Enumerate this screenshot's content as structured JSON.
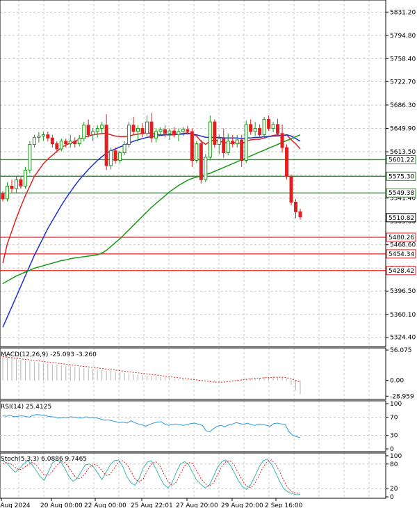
{
  "chart_data": [
    {
      "type": "candlestick",
      "panel": "price",
      "ylim": [
        5310,
        5850
      ],
      "y_ticks": [
        "5831.20",
        "5794.80",
        "5758.40",
        "5722.70",
        "5686.30",
        "5649.90",
        "5613.50",
        "5577.10",
        "5541.40",
        "5505.00",
        "5468.60",
        "5432.20",
        "5396.50",
        "5360.10",
        "5324.40"
      ],
      "y_tick_values": [
        5831.2,
        5794.8,
        5758.4,
        5722.7,
        5686.3,
        5649.9,
        5613.5,
        5577.1,
        5541.4,
        5505.0,
        5468.6,
        5432.2,
        5396.5,
        5360.1,
        5324.4
      ],
      "x_ticks": [
        "16 Aug 2024",
        "20 Aug 00:00",
        "22 Aug 00:00",
        "25 Aug 22:01",
        "27 Aug 20:00",
        "29 Aug 20:00",
        "2 Sep 16:00"
      ],
      "candles": [
        [
          5548,
          5552,
          5536,
          5540
        ],
        [
          5540,
          5566,
          5536,
          5560
        ],
        [
          5560,
          5570,
          5550,
          5556
        ],
        [
          5556,
          5576,
          5550,
          5570
        ],
        [
          5570,
          5574,
          5556,
          5560
        ],
        [
          5560,
          5590,
          5556,
          5585
        ],
        [
          5585,
          5630,
          5580,
          5625
        ],
        [
          5625,
          5640,
          5620,
          5636
        ],
        [
          5636,
          5644,
          5628,
          5638
        ],
        [
          5638,
          5645,
          5630,
          5640
        ],
        [
          5640,
          5645,
          5630,
          5635
        ],
        [
          5635,
          5640,
          5620,
          5626
        ],
        [
          5626,
          5630,
          5612,
          5618
        ],
        [
          5618,
          5634,
          5614,
          5630
        ],
        [
          5630,
          5634,
          5620,
          5626
        ],
        [
          5626,
          5640,
          5620,
          5630
        ],
        [
          5630,
          5636,
          5620,
          5626
        ],
        [
          5626,
          5640,
          5622,
          5634
        ],
        [
          5634,
          5660,
          5630,
          5655
        ],
        [
          5655,
          5664,
          5636,
          5640
        ],
        [
          5640,
          5650,
          5630,
          5645
        ],
        [
          5645,
          5655,
          5636,
          5650
        ],
        [
          5650,
          5660,
          5642,
          5655
        ],
        [
          5655,
          5672,
          5585,
          5592
        ],
        [
          5592,
          5620,
          5586,
          5615
        ],
        [
          5615,
          5620,
          5595,
          5600
        ],
        [
          5600,
          5615,
          5596,
          5612
        ],
        [
          5612,
          5630,
          5608,
          5625
        ],
        [
          5625,
          5660,
          5620,
          5655
        ],
        [
          5655,
          5668,
          5640,
          5645
        ],
        [
          5645,
          5655,
          5630,
          5650
        ],
        [
          5650,
          5658,
          5636,
          5642
        ],
        [
          5642,
          5670,
          5638,
          5660
        ],
        [
          5660,
          5674,
          5628,
          5635
        ],
        [
          5635,
          5650,
          5628,
          5645
        ],
        [
          5645,
          5652,
          5638,
          5648
        ],
        [
          5648,
          5655,
          5636,
          5642
        ],
        [
          5642,
          5650,
          5632,
          5646
        ],
        [
          5646,
          5652,
          5636,
          5640
        ],
        [
          5640,
          5650,
          5630,
          5645
        ],
        [
          5645,
          5652,
          5638,
          5648
        ],
        [
          5648,
          5654,
          5640,
          5645
        ],
        [
          5645,
          5650,
          5590,
          5600
        ],
        [
          5600,
          5630,
          5596,
          5626
        ],
        [
          5626,
          5632,
          5564,
          5570
        ],
        [
          5570,
          5610,
          5566,
          5605
        ],
        [
          5605,
          5670,
          5600,
          5660
        ],
        [
          5660,
          5664,
          5620,
          5625
        ],
        [
          5625,
          5640,
          5610,
          5634
        ],
        [
          5634,
          5650,
          5604,
          5612
        ],
        [
          5612,
          5642,
          5608,
          5630
        ],
        [
          5630,
          5640,
          5620,
          5626
        ],
        [
          5626,
          5640,
          5620,
          5632
        ],
        [
          5632,
          5640,
          5590,
          5600
        ],
        [
          5600,
          5662,
          5596,
          5656
        ],
        [
          5656,
          5664,
          5640,
          5645
        ],
        [
          5645,
          5660,
          5638,
          5650
        ],
        [
          5650,
          5656,
          5636,
          5640
        ],
        [
          5640,
          5668,
          5636,
          5664
        ],
        [
          5664,
          5670,
          5646,
          5650
        ],
        [
          5650,
          5660,
          5644,
          5656
        ],
        [
          5656,
          5665,
          5638,
          5642
        ],
        [
          5642,
          5656,
          5612,
          5620
        ],
        [
          5620,
          5625,
          5570,
          5575
        ],
        [
          5575,
          5578,
          5530,
          5535
        ],
        [
          5535,
          5540,
          5510,
          5520
        ],
        [
          5520,
          5525,
          5508,
          5512
        ]
      ],
      "series": [
        {
          "name": "",
          "color": "#e02020",
          "values": [
            5440,
            5470,
            5490,
            5510,
            5528,
            5545,
            5560,
            5575,
            5585,
            5595,
            5602,
            5608,
            5614,
            5620,
            5624,
            5627,
            5630,
            5633,
            5636,
            5638,
            5640,
            5641,
            5642,
            5642,
            5640,
            5638,
            5637,
            5637,
            5638,
            5640,
            5641,
            5642,
            5643,
            5642,
            5641,
            5640,
            5640,
            5640,
            5640,
            5641,
            5642,
            5643,
            5641,
            5638,
            5630,
            5625,
            5630,
            5632,
            5630,
            5628,
            5627,
            5627,
            5628,
            5626,
            5630,
            5632,
            5633,
            5633,
            5635,
            5637,
            5639,
            5640,
            5638,
            5640,
            5632,
            5626,
            5618
          ]
        },
        {
          "name": "",
          "color": "#1f2fd6",
          "values": [
            5340,
            5356,
            5372,
            5388,
            5404,
            5420,
            5436,
            5452,
            5466,
            5480,
            5494,
            5506,
            5518,
            5530,
            5541,
            5551,
            5561,
            5570,
            5578,
            5586,
            5593,
            5600,
            5606,
            5611,
            5615,
            5618,
            5621,
            5624,
            5627,
            5630,
            5632,
            5634,
            5636,
            5637,
            5638,
            5639,
            5640,
            5640,
            5641,
            5641,
            5641,
            5642,
            5641,
            5640,
            5638,
            5636,
            5636,
            5636,
            5636,
            5635,
            5635,
            5635,
            5635,
            5634,
            5635,
            5635,
            5636,
            5636,
            5637,
            5637,
            5638,
            5638,
            5639,
            5640,
            5638,
            5634,
            5630
          ]
        },
        {
          "name": "",
          "color": "#1a9a1a",
          "values": [
            5408,
            5412,
            5416,
            5420,
            5423,
            5426,
            5429,
            5432,
            5434,
            5436,
            5438,
            5440,
            5442,
            5444,
            5445,
            5447,
            5448,
            5449,
            5450,
            5451,
            5452,
            5453,
            5456,
            5460,
            5466,
            5472,
            5478,
            5485,
            5492,
            5499,
            5506,
            5513,
            5520,
            5527,
            5533,
            5539,
            5545,
            5551,
            5556,
            5561,
            5565,
            5569,
            5572,
            5574,
            5576,
            5578,
            5580,
            5583,
            5586,
            5589,
            5592,
            5595,
            5598,
            5601,
            5604,
            5607,
            5610,
            5613,
            5616,
            5619,
            5622,
            5625,
            5628,
            5631,
            5634,
            5637,
            5640
          ]
        }
      ],
      "levels": [
        {
          "value": "5601.22",
          "color": "#1a9a1a"
        },
        {
          "value": "5575.30",
          "color": "#1a9a1a"
        },
        {
          "value": "5549.38",
          "color": "#1a9a1a"
        },
        {
          "value": "5480.26",
          "color": "#e02020"
        },
        {
          "value": "5454.34",
          "color": "#e02020"
        },
        {
          "value": "5428.42",
          "color": "#e02020"
        }
      ],
      "current_price": "5510.82"
    },
    {
      "type": "histogram",
      "panel": "macd",
      "label": "MACD(12,26,9) -25.093 -3.260",
      "ylim": [
        -35,
        60
      ],
      "y_ticks": [
        "56.075",
        "0.00",
        "-28.959"
      ],
      "y_tick_values": [
        56.075,
        0,
        -28.959
      ],
      "values": [
        46,
        44,
        42,
        40,
        38,
        36,
        35,
        34,
        33,
        32,
        31,
        30,
        29,
        28,
        27,
        26,
        25,
        24,
        23,
        22,
        21,
        20,
        19,
        18,
        17,
        16,
        15,
        14,
        13,
        12,
        11,
        10,
        9,
        8,
        7,
        6,
        5,
        4,
        3,
        2,
        2,
        1,
        1,
        0,
        -1,
        -2,
        -3,
        -3,
        -2,
        -1,
        0,
        1,
        2,
        3,
        4,
        4,
        5,
        5,
        6,
        6,
        7,
        6,
        5,
        3,
        -8,
        -18,
        -25
      ],
      "signal": [
        44,
        43,
        42,
        41,
        40,
        39,
        38,
        37,
        36,
        35,
        34,
        33,
        32,
        31,
        30,
        29,
        28,
        27,
        26,
        25,
        24,
        23,
        22,
        21,
        20,
        19,
        18,
        17,
        16,
        15,
        14,
        13,
        12,
        11,
        10,
        9,
        8,
        7,
        6,
        5,
        4,
        3,
        2,
        1,
        0,
        -1,
        -2,
        -3,
        -3,
        -3,
        -2,
        -1,
        0,
        1,
        2,
        3,
        4,
        4,
        5,
        5,
        6,
        6,
        6,
        5,
        3,
        0,
        -3
      ]
    },
    {
      "type": "line",
      "panel": "rsi",
      "label": "RSI(14) 25.4125",
      "ylim": [
        0,
        100
      ],
      "y_ticks": [
        "100",
        "70",
        "30",
        "0"
      ],
      "y_tick_values": [
        100,
        70,
        30,
        0
      ],
      "values": [
        73,
        72,
        74,
        71,
        72,
        73,
        72,
        70,
        74,
        76,
        75,
        74,
        72,
        71,
        70,
        68,
        70,
        69,
        71,
        70,
        69,
        68,
        71,
        69,
        70,
        68,
        66,
        63,
        64,
        62,
        60,
        58,
        59,
        57,
        62,
        58,
        55,
        53,
        50,
        54,
        57,
        59,
        60,
        55,
        52,
        54,
        55,
        53,
        52,
        54,
        56,
        57,
        54,
        52,
        40,
        38,
        45,
        50,
        52,
        49,
        53,
        55,
        58,
        56,
        54,
        57,
        53,
        52,
        55,
        54,
        52,
        50,
        56,
        57,
        55,
        54,
        38,
        30,
        27,
        25
      ]
    },
    {
      "type": "line",
      "panel": "stoch",
      "label": "Stoch(5,3,3) 6.0886 9.7465",
      "ylim": [
        0,
        100
      ],
      "y_ticks": [
        "100",
        "80",
        "20",
        "0"
      ],
      "y_tick_values": [
        100,
        80,
        20,
        0
      ],
      "values": [
        88,
        82,
        70,
        60,
        68,
        80,
        88,
        80,
        65,
        50,
        40,
        60,
        82,
        90,
        86,
        70,
        50,
        38,
        45,
        62,
        78,
        80,
        72,
        58,
        42,
        60,
        78,
        88,
        90,
        75,
        50,
        35,
        28,
        45,
        70,
        85,
        88,
        70,
        48,
        30,
        22,
        35,
        60,
        80,
        86,
        78,
        58,
        40,
        30,
        22,
        28,
        50,
        72,
        86,
        90,
        78,
        60,
        40,
        25,
        18,
        30,
        50,
        72,
        88,
        92,
        80,
        60,
        38,
        20,
        12,
        8,
        5,
        6
      ],
      "signal": [
        80,
        84,
        80,
        72,
        66,
        70,
        78,
        84,
        78,
        66,
        54,
        52,
        62,
        76,
        86,
        84,
        72,
        56,
        44,
        46,
        58,
        72,
        80,
        76,
        64,
        52,
        56,
        70,
        84,
        88,
        80,
        62,
        44,
        36,
        44,
        64,
        80,
        86,
        76,
        56,
        38,
        28,
        36,
        56,
        76,
        84,
        80,
        62,
        44,
        32,
        26,
        34,
        54,
        74,
        86,
        88,
        78,
        58,
        40,
        26,
        22,
        32,
        52,
        72,
        86,
        90,
        80,
        62,
        40,
        22,
        12,
        9,
        9.7
      ]
    }
  ]
}
